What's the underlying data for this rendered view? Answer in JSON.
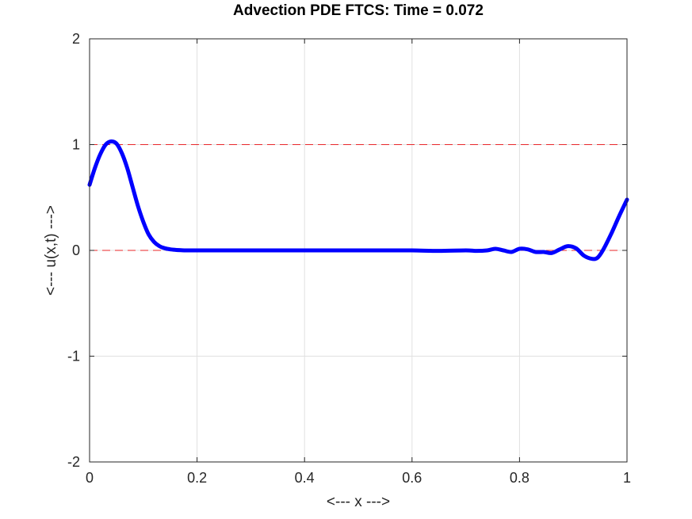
{
  "chart_data": {
    "type": "line",
    "title": "Advection PDE FTCS: Time = 0.072",
    "xlabel": "<--- x --->",
    "ylabel": "<--- u(x,t) --->",
    "xlim": [
      0,
      1
    ],
    "ylim": [
      -2,
      2
    ],
    "xticks": [
      0,
      0.2,
      0.4,
      0.6,
      0.8,
      1
    ],
    "xtick_labels": [
      "0",
      "0.2",
      "0.4",
      "0.6",
      "0.8",
      "1"
    ],
    "yticks": [
      -2,
      -1,
      0,
      1,
      2
    ],
    "ytick_labels": [
      "-2",
      "-1",
      "0",
      "1",
      "2"
    ],
    "grid": true,
    "reference_lines": [
      {
        "y": 1,
        "style": "dashed",
        "color": "#e8272a"
      },
      {
        "y": 0,
        "style": "dashed",
        "color": "#e8272a"
      }
    ],
    "series": [
      {
        "color": "#0000ff",
        "x": [
          0,
          0.01,
          0.02,
          0.03,
          0.04,
          0.05,
          0.06,
          0.07,
          0.08,
          0.09,
          0.1,
          0.11,
          0.12,
          0.13,
          0.14,
          0.15,
          0.16,
          0.17,
          0.18,
          0.2,
          0.25,
          0.3,
          0.35,
          0.4,
          0.45,
          0.5,
          0.55,
          0.6,
          0.65,
          0.7,
          0.72,
          0.74,
          0.755,
          0.77,
          0.785,
          0.8,
          0.815,
          0.83,
          0.845,
          0.86,
          0.875,
          0.89,
          0.905,
          0.92,
          0.935,
          0.945,
          0.955,
          0.97,
          0.985,
          1.0
        ],
        "y": [
          0.62,
          0.78,
          0.91,
          1.0,
          1.03,
          1.01,
          0.92,
          0.78,
          0.6,
          0.42,
          0.27,
          0.15,
          0.08,
          0.04,
          0.02,
          0.01,
          0.005,
          0.002,
          0.0,
          0.0,
          0.0,
          0.0,
          0.0,
          0.0,
          0.0,
          0.0,
          0.0,
          0.0,
          -0.005,
          0.0,
          -0.005,
          0.0,
          0.015,
          0.0,
          -0.015,
          0.015,
          0.01,
          -0.015,
          -0.015,
          -0.025,
          0.01,
          0.04,
          0.02,
          -0.05,
          -0.08,
          -0.07,
          0.0,
          0.15,
          0.32,
          0.48
        ]
      }
    ]
  }
}
